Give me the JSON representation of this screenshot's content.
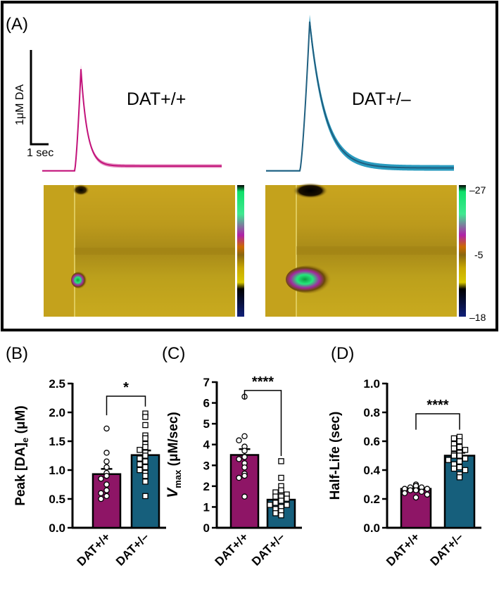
{
  "panel_a": {
    "label": "(A)",
    "scale_bar": {
      "y_label": "1μM DA",
      "x_label": "1 sec"
    },
    "traces": [
      {
        "name": "DAT+/+",
        "color": "#c2127a",
        "band": "#e58fc0",
        "peak_uM": 1.05,
        "baseline_uM": -0.02,
        "tail_uM": 0.03
      },
      {
        "name": "DAT+/–",
        "color": "#1f5f80",
        "band": "#2a9bbf",
        "peak_uM": 1.55,
        "baseline_uM": -0.02,
        "tail_uM": 0.01
      }
    ],
    "colorbar": {
      "max_label": "–27",
      "mid_label": "-5",
      "min_label": "–18"
    }
  },
  "colors": {
    "wt": "#8e1566",
    "het": "#165f7c",
    "frame": "#000000"
  },
  "chart_data": [
    {
      "panel": "(B)",
      "type": "bar",
      "ylabel_main": "Peak [DA]",
      "ylabel_sub": "e",
      "ylabel_unit": " (μM)",
      "categories": [
        "DAT+/+",
        "DAT+/–"
      ],
      "values": [
        0.93,
        1.26
      ],
      "errors": [
        0.09,
        0.08
      ],
      "ylim": [
        0,
        2.5
      ],
      "yticks": [
        "0.0",
        "0.5",
        "1.0",
        "1.5",
        "2.0",
        "2.5"
      ],
      "ytick_values": [
        0,
        0.5,
        1,
        1.5,
        2,
        2.5
      ],
      "points": [
        [
          1.72,
          1.3,
          1.15,
          1.05,
          0.95,
          0.9,
          0.85,
          0.75,
          0.65,
          0.6,
          0.55,
          0.5
        ],
        [
          1.98,
          1.92,
          1.78,
          1.6,
          1.55,
          1.45,
          1.4,
          1.35,
          1.3,
          1.25,
          1.2,
          1.15,
          1.1,
          1.05,
          1.0,
          0.95,
          0.9,
          0.8,
          0.55
        ]
      ],
      "significance": "*"
    },
    {
      "panel": "(C)",
      "type": "bar",
      "ylabel_italic": "V",
      "ylabel_sub": "max",
      "ylabel_unit": " (μM/sec)",
      "categories": [
        "DAT+/+",
        "DAT+/–"
      ],
      "values": [
        3.5,
        1.35
      ],
      "errors": [
        0.28,
        0.15
      ],
      "ylim": [
        0,
        7
      ],
      "yticks": [
        "0",
        "1",
        "2",
        "3",
        "4",
        "5",
        "6",
        "7"
      ],
      "ytick_values": [
        0,
        1,
        2,
        3,
        4,
        5,
        6,
        7
      ],
      "points": [
        [
          6.3,
          4.4,
          4.2,
          3.9,
          3.7,
          3.4,
          3.3,
          3.1,
          2.9,
          2.6,
          2.5,
          2.4,
          1.5
        ],
        [
          3.2,
          2.4,
          2.0,
          1.8,
          1.7,
          1.6,
          1.5,
          1.5,
          1.4,
          1.3,
          1.2,
          1.1,
          1.1,
          1.0,
          0.9,
          0.8,
          0.7,
          0.6
        ]
      ],
      "significance": "****"
    },
    {
      "panel": "(D)",
      "type": "bar",
      "ylabel": "Half-Life (sec)",
      "categories": [
        "DAT+/+",
        "DAT+/–"
      ],
      "values": [
        0.27,
        0.5
      ],
      "errors": [
        0.01,
        0.02
      ],
      "ylim": [
        0,
        1.0
      ],
      "yticks": [
        "0.0",
        "0.2",
        "0.4",
        "0.6",
        "0.8",
        "1.0"
      ],
      "ytick_values": [
        0,
        0.2,
        0.4,
        0.6,
        0.8,
        1.0
      ],
      "points": [
        [
          0.3,
          0.29,
          0.28,
          0.28,
          0.27,
          0.27,
          0.26,
          0.26,
          0.25,
          0.24,
          0.23,
          0.21
        ],
        [
          0.63,
          0.62,
          0.6,
          0.58,
          0.56,
          0.55,
          0.54,
          0.52,
          0.51,
          0.5,
          0.5,
          0.48,
          0.47,
          0.46,
          0.44,
          0.42,
          0.41,
          0.4,
          0.37,
          0.35
        ]
      ],
      "significance": "****"
    }
  ]
}
